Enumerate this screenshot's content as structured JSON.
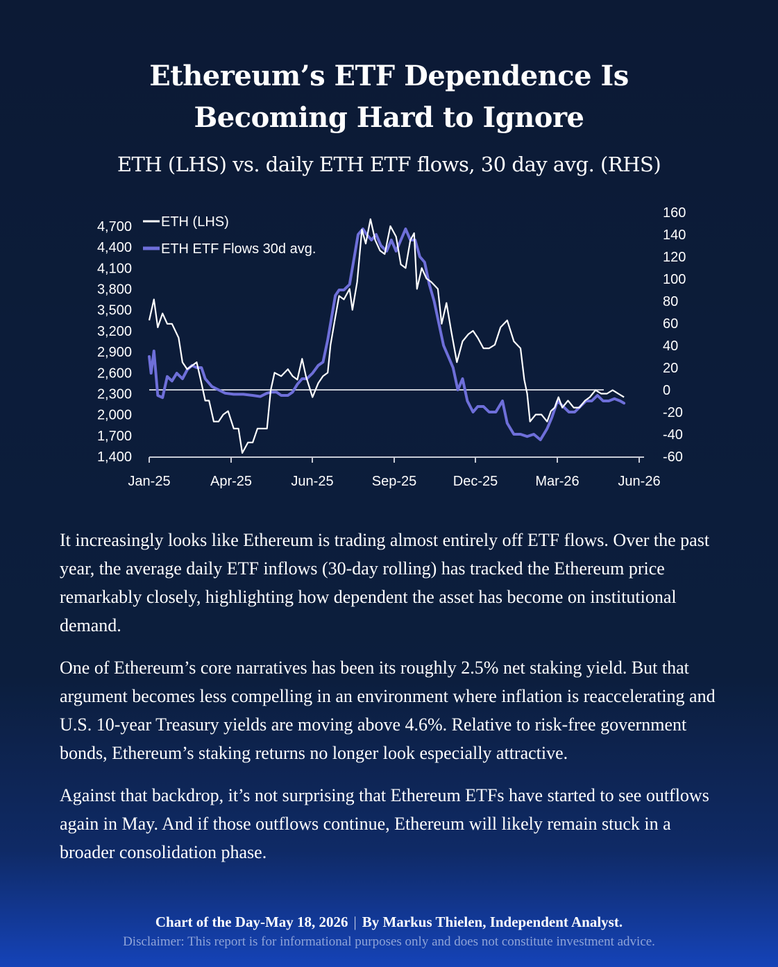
{
  "title_line1": "Ethereum’s ETF Dependence Is",
  "title_line2": "Becoming Hard to Ignore",
  "subtitle": "ETH (LHS) vs. daily ETH ETF flows, 30 day avg. (RHS)",
  "chart_data": {
    "type": "line",
    "x_ticks": [
      "Jan-25",
      "Apr-25",
      "Jun-25",
      "Sep-25",
      "Dec-25",
      "Mar-26",
      "Jun-26"
    ],
    "left_axis": {
      "ticks": [
        1400,
        1700,
        2000,
        2300,
        2600,
        2900,
        3200,
        3500,
        3800,
        4100,
        4400,
        4700
      ],
      "tick_labels": [
        "1,400",
        "1,700",
        "2,000",
        "2,300",
        "2,600",
        "2,900",
        "3,200",
        "3,500",
        "3,800",
        "4,100",
        "4,400",
        "4,700"
      ],
      "range": [
        1400,
        4850
      ]
    },
    "right_axis": {
      "ticks": [
        -60,
        -40,
        -20,
        0,
        20,
        40,
        60,
        80,
        100,
        120,
        140,
        160
      ],
      "range": [
        -60,
        160
      ]
    },
    "zero_line_rhs": 0,
    "legend_position": "top-left",
    "series": [
      {
        "name": "ETH (LHS)",
        "axis": "left",
        "color": "#ffffff",
        "points": [
          [
            "2025-01-01",
            3350
          ],
          [
            "2025-01-06",
            3650
          ],
          [
            "2025-01-10",
            3250
          ],
          [
            "2025-01-15",
            3450
          ],
          [
            "2025-01-20",
            3300
          ],
          [
            "2025-01-25",
            3300
          ],
          [
            "2025-02-01",
            3100
          ],
          [
            "2025-02-05",
            2750
          ],
          [
            "2025-02-10",
            2650
          ],
          [
            "2025-02-15",
            2700
          ],
          [
            "2025-02-20",
            2750
          ],
          [
            "2025-02-25",
            2450
          ],
          [
            "2025-03-01",
            2200
          ],
          [
            "2025-03-05",
            2200
          ],
          [
            "2025-03-10",
            1900
          ],
          [
            "2025-03-15",
            1900
          ],
          [
            "2025-03-20",
            2000
          ],
          [
            "2025-03-25",
            2050
          ],
          [
            "2025-03-31",
            1800
          ],
          [
            "2025-04-05",
            1800
          ],
          [
            "2025-04-09",
            1450
          ],
          [
            "2025-04-15",
            1600
          ],
          [
            "2025-04-20",
            1600
          ],
          [
            "2025-04-25",
            1800
          ],
          [
            "2025-05-01",
            1800
          ],
          [
            "2025-05-05",
            1800
          ],
          [
            "2025-05-09",
            2350
          ],
          [
            "2025-05-13",
            2600
          ],
          [
            "2025-05-20",
            2550
          ],
          [
            "2025-05-27",
            2650
          ],
          [
            "2025-06-01",
            2550
          ],
          [
            "2025-06-06",
            2500
          ],
          [
            "2025-06-11",
            2800
          ],
          [
            "2025-06-15",
            2550
          ],
          [
            "2025-06-22",
            2250
          ],
          [
            "2025-06-28",
            2450
          ],
          [
            "2025-07-03",
            2550
          ],
          [
            "2025-07-08",
            2600
          ],
          [
            "2025-07-11",
            3000
          ],
          [
            "2025-07-16",
            3400
          ],
          [
            "2025-07-20",
            3700
          ],
          [
            "2025-07-25",
            3650
          ],
          [
            "2025-07-31",
            3800
          ],
          [
            "2025-08-03",
            3500
          ],
          [
            "2025-08-08",
            3900
          ],
          [
            "2025-08-13",
            4650
          ],
          [
            "2025-08-17",
            4450
          ],
          [
            "2025-08-22",
            4800
          ],
          [
            "2025-08-27",
            4500
          ],
          [
            "2025-09-01",
            4350
          ],
          [
            "2025-09-06",
            4300
          ],
          [
            "2025-09-12",
            4700
          ],
          [
            "2025-09-18",
            4550
          ],
          [
            "2025-09-23",
            4150
          ],
          [
            "2025-09-28",
            4100
          ],
          [
            "2025-10-03",
            4500
          ],
          [
            "2025-10-07",
            4600
          ],
          [
            "2025-10-10",
            3800
          ],
          [
            "2025-10-15",
            4100
          ],
          [
            "2025-10-20",
            3950
          ],
          [
            "2025-10-25",
            3900
          ],
          [
            "2025-11-01",
            3800
          ],
          [
            "2025-11-05",
            3300
          ],
          [
            "2025-11-10",
            3600
          ],
          [
            "2025-11-15",
            3200
          ],
          [
            "2025-11-21",
            2750
          ],
          [
            "2025-11-27",
            3050
          ],
          [
            "2025-12-03",
            3150
          ],
          [
            "2025-12-08",
            3200
          ],
          [
            "2025-12-13",
            3100
          ],
          [
            "2025-12-19",
            2950
          ],
          [
            "2025-12-25",
            2950
          ],
          [
            "2025-12-31",
            3000
          ],
          [
            "2026-01-06",
            3250
          ],
          [
            "2026-01-13",
            3350
          ],
          [
            "2026-01-20",
            3050
          ],
          [
            "2026-01-27",
            2950
          ],
          [
            "2026-01-31",
            2500
          ],
          [
            "2026-02-03",
            2300
          ],
          [
            "2026-02-06",
            1900
          ],
          [
            "2026-02-12",
            2000
          ],
          [
            "2026-02-18",
            2000
          ],
          [
            "2026-02-24",
            1900
          ],
          [
            "2026-02-28",
            2050
          ],
          [
            "2026-03-04",
            2100
          ],
          [
            "2026-03-08",
            2250
          ],
          [
            "2026-03-12",
            2100
          ],
          [
            "2026-03-18",
            2200
          ],
          [
            "2026-03-24",
            2100
          ],
          [
            "2026-03-30",
            2100
          ],
          [
            "2026-04-05",
            2200
          ],
          [
            "2026-04-10",
            2250
          ],
          [
            "2026-04-16",
            2350
          ],
          [
            "2026-04-22",
            2300
          ],
          [
            "2026-04-28",
            2300
          ],
          [
            "2026-05-04",
            2350
          ],
          [
            "2026-05-10",
            2300
          ],
          [
            "2026-05-16",
            2250
          ]
        ]
      },
      {
        "name": "ETH ETF Flows 30d avg.",
        "axis": "right",
        "color": "#6e6fd9",
        "points": [
          [
            "2025-01-01",
            30
          ],
          [
            "2025-01-03",
            15
          ],
          [
            "2025-01-06",
            35
          ],
          [
            "2025-01-10",
            -5
          ],
          [
            "2025-01-15",
            -7
          ],
          [
            "2025-01-20",
            12
          ],
          [
            "2025-01-25",
            8
          ],
          [
            "2025-01-30",
            15
          ],
          [
            "2025-02-05",
            10
          ],
          [
            "2025-02-10",
            18
          ],
          [
            "2025-02-15",
            22
          ],
          [
            "2025-02-20",
            20
          ],
          [
            "2025-02-25",
            20
          ],
          [
            "2025-03-01",
            10
          ],
          [
            "2025-03-08",
            3
          ],
          [
            "2025-03-15",
            0
          ],
          [
            "2025-03-22",
            -3
          ],
          [
            "2025-03-31",
            -4
          ],
          [
            "2025-04-10",
            -4
          ],
          [
            "2025-04-20",
            -5
          ],
          [
            "2025-04-28",
            -6
          ],
          [
            "2025-05-05",
            -3
          ],
          [
            "2025-05-10",
            -2
          ],
          [
            "2025-05-15",
            -2
          ],
          [
            "2025-05-20",
            -5
          ],
          [
            "2025-05-27",
            -5
          ],
          [
            "2025-06-01",
            -2
          ],
          [
            "2025-06-06",
            5
          ],
          [
            "2025-06-11",
            10
          ],
          [
            "2025-06-16",
            10
          ],
          [
            "2025-06-22",
            15
          ],
          [
            "2025-06-28",
            22
          ],
          [
            "2025-07-03",
            25
          ],
          [
            "2025-07-08",
            45
          ],
          [
            "2025-07-12",
            65
          ],
          [
            "2025-07-16",
            85
          ],
          [
            "2025-07-20",
            90
          ],
          [
            "2025-07-25",
            90
          ],
          [
            "2025-07-31",
            95
          ],
          [
            "2025-08-04",
            115
          ],
          [
            "2025-08-09",
            140
          ],
          [
            "2025-08-14",
            145
          ],
          [
            "2025-08-18",
            140
          ],
          [
            "2025-08-23",
            135
          ],
          [
            "2025-08-28",
            140
          ],
          [
            "2025-09-02",
            130
          ],
          [
            "2025-09-08",
            125
          ],
          [
            "2025-09-13",
            135
          ],
          [
            "2025-09-18",
            125
          ],
          [
            "2025-09-23",
            135
          ],
          [
            "2025-09-28",
            145
          ],
          [
            "2025-10-03",
            135
          ],
          [
            "2025-10-08",
            135
          ],
          [
            "2025-10-13",
            120
          ],
          [
            "2025-10-18",
            115
          ],
          [
            "2025-10-23",
            95
          ],
          [
            "2025-10-28",
            80
          ],
          [
            "2025-11-02",
            60
          ],
          [
            "2025-11-07",
            40
          ],
          [
            "2025-11-12",
            30
          ],
          [
            "2025-11-17",
            20
          ],
          [
            "2025-11-22",
            0
          ],
          [
            "2025-11-27",
            10
          ],
          [
            "2025-12-02",
            -10
          ],
          [
            "2025-12-08",
            -20
          ],
          [
            "2025-12-13",
            -15
          ],
          [
            "2025-12-19",
            -15
          ],
          [
            "2025-12-25",
            -20
          ],
          [
            "2026-01-01",
            -20
          ],
          [
            "2026-01-08",
            -10
          ],
          [
            "2026-01-13",
            -30
          ],
          [
            "2026-01-20",
            -40
          ],
          [
            "2026-01-27",
            -40
          ],
          [
            "2026-02-03",
            -42
          ],
          [
            "2026-02-10",
            -40
          ],
          [
            "2026-02-17",
            -45
          ],
          [
            "2026-02-24",
            -35
          ],
          [
            "2026-03-01",
            -25
          ],
          [
            "2026-03-07",
            -10
          ],
          [
            "2026-03-13",
            -15
          ],
          [
            "2026-03-19",
            -20
          ],
          [
            "2026-03-25",
            -20
          ],
          [
            "2026-03-31",
            -15
          ],
          [
            "2026-04-06",
            -10
          ],
          [
            "2026-04-12",
            -10
          ],
          [
            "2026-04-18",
            -5
          ],
          [
            "2026-04-24",
            -10
          ],
          [
            "2026-04-30",
            -10
          ],
          [
            "2026-05-06",
            -8
          ],
          [
            "2026-05-12",
            -10
          ],
          [
            "2026-05-16",
            -12
          ]
        ]
      }
    ]
  },
  "paragraphs": [
    "It increasingly looks like Ethereum is trading almost entirely off ETF flows. Over the past year, the average daily ETF inflows (30-day rolling) has tracked the Ethereum price remarkably closely, highlighting how dependent the asset has become on institutional demand.",
    "One of  Ethereum’s core narratives has been its roughly 2.5% net staking yield. But that argument becomes less compelling in an environment where inflation is reaccelerating and U.S. 10-year Treasury yields are moving above 4.6%. Relative to risk-free government bonds, Ethereum’s staking returns no longer look especially attractive.",
    "Against that backdrop, it’s not surprising that Ethereum ETFs have started to see outflows again in May. And if those outflows continue, Ethereum will likely remain stuck in a broader consolidation phase."
  ],
  "footer": {
    "chart_of_day": "Chart of the Day-May 18, 2026",
    "separator": "|",
    "byline": "By Markus Thielen, Independent Analyst.",
    "disclaimer": "Disclaimer: This report is for informational purposes only and does not constitute investment advice."
  }
}
